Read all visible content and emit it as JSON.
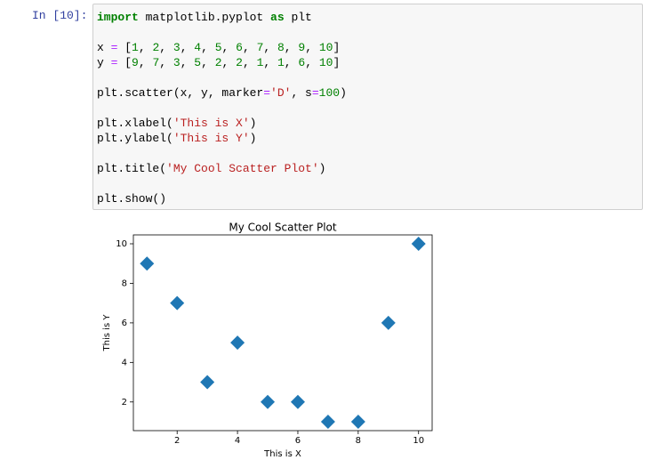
{
  "prompt": "In [10]:",
  "code": [
    [
      "import matplotlib.pyplot as plt"
    ],
    [
      "x = [1, 2, 3, 4, 5, 6, 7, 8, 9, 10]",
      "y = [9, 7, 3, 5, 2, 2, 1, 1, 6, 10]"
    ],
    [
      "plt.scatter(x, y, marker='D', s=100)"
    ],
    [
      "plt.xlabel('This is X')",
      "plt.ylabel('This is Y')"
    ],
    [
      "plt.title('My Cool Scatter Plot')"
    ],
    [
      "plt.show()"
    ]
  ],
  "chart_data": {
    "type": "scatter",
    "title": "My Cool Scatter Plot",
    "xlabel": "This is X",
    "ylabel": "This is Y",
    "marker": "diamond",
    "color": "#1f77b4",
    "x": [
      1,
      2,
      3,
      4,
      5,
      6,
      7,
      8,
      9,
      10
    ],
    "y": [
      9,
      7,
      3,
      5,
      2,
      2,
      1,
      1,
      6,
      10
    ],
    "xlim": [
      0.55,
      10.45
    ],
    "ylim": [
      0.55,
      10.45
    ],
    "xticks": [
      2,
      4,
      6,
      8,
      10
    ],
    "yticks": [
      2,
      4,
      6,
      8,
      10
    ],
    "grid": false
  }
}
